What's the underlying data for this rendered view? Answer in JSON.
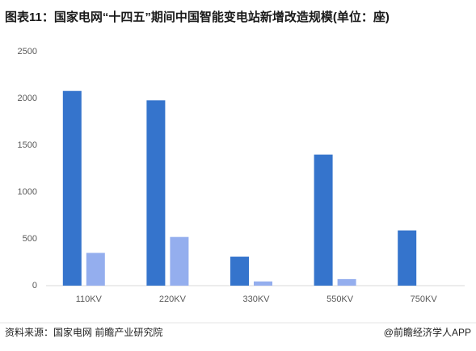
{
  "chart_data": {
    "type": "bar",
    "title": "图表11：国家电网“十四五”期间中国智能变电站新增改造规模(单位：座)",
    "categories": [
      "110KV",
      "220KV",
      "330KV",
      "550KV",
      "750KV"
    ],
    "series": [
      {
        "color": "#3574cc",
        "values": [
          2080,
          1980,
          310,
          1400,
          590
        ]
      },
      {
        "color": "#94aeee",
        "values": [
          350,
          520,
          45,
          70,
          null
        ]
      }
    ],
    "ylim": [
      0,
      2500
    ],
    "yticks": [
      0,
      500,
      1000,
      1500,
      2000,
      2500
    ],
    "grid": false,
    "source": "资料来源：国家电网 前瞻产业研究院",
    "brand": "@前瞻经济学人APP"
  }
}
